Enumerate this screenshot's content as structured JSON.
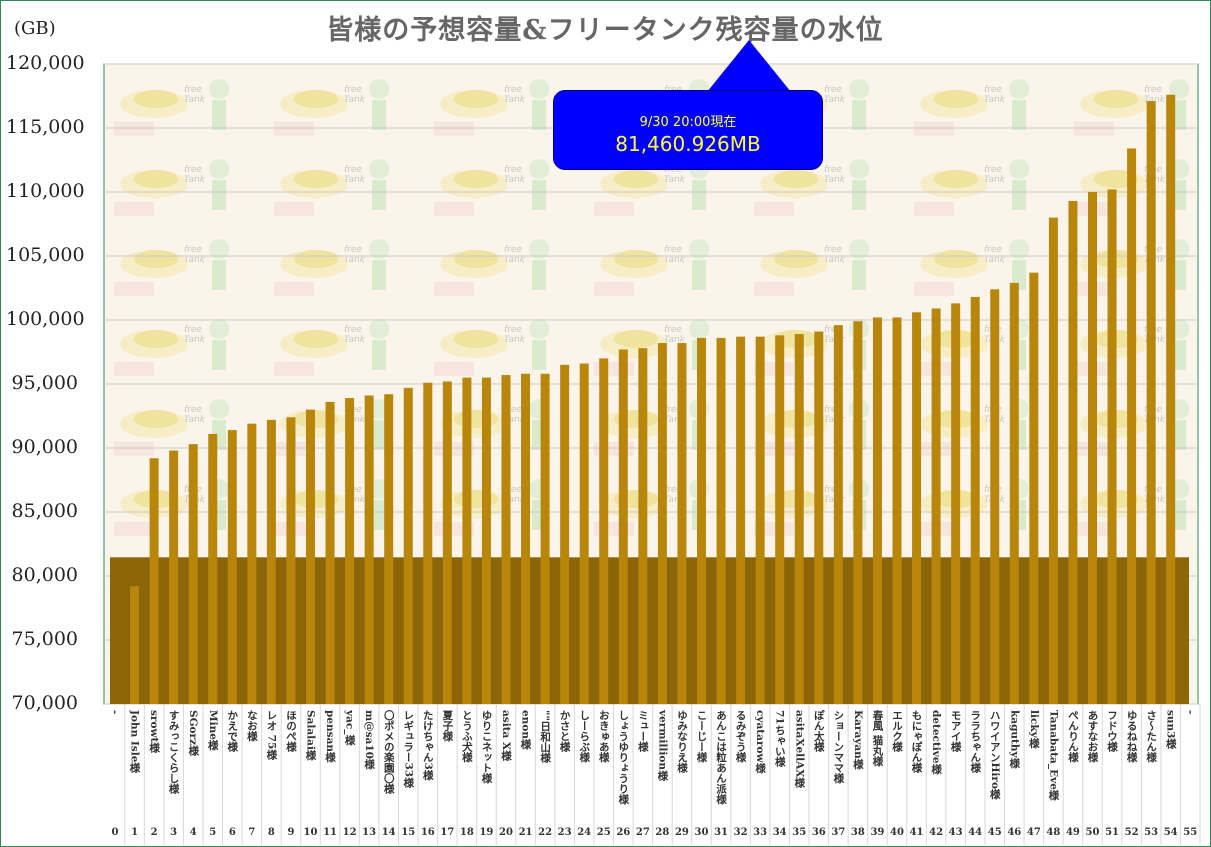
{
  "title": "皆様の予想容量&フリータンク残容量の水位",
  "unit_label": "(GB)",
  "callout": {
    "line1": "9/30 20:00現在",
    "line2": "81,460.926MB"
  },
  "colors": {
    "bar": "#b8860b",
    "tank": "#8b6508",
    "grid": "#c8c8c8",
    "title": "#666666",
    "callout_bg": "#0000ff",
    "callout_text": "#ffff33"
  },
  "chart_data": {
    "type": "bar",
    "title": "皆様の予想容量&フリータンク残容量の水位",
    "ylabel": "(GB)",
    "ylim": [
      70000,
      120000
    ],
    "yticks": [
      70000,
      75000,
      80000,
      85000,
      90000,
      95000,
      100000,
      105000,
      110000,
      115000,
      120000
    ],
    "ytick_labels": [
      "70,000",
      "75,000",
      "80,000",
      "85,000",
      "90,000",
      "95,000",
      "100,000",
      "105,000",
      "110,000",
      "115,000",
      "120,000"
    ],
    "tank_level": 81460.926,
    "categories": [
      "-",
      "John Isle様",
      "srowt様",
      "すみっこくらし様",
      "SGorz様",
      "Mine様",
      "かえで様",
      "なお様",
      "レオ 75様",
      "ほのぺ様",
      "Salalai様",
      "pensan様",
      "yac_様",
      "m@sa10様",
      "〇ポメの楽園〇様",
      "レギュラー33様",
      "たけちゃん3様",
      "夏子様",
      "とうふ犬様",
      "ゆりこネット様",
      "asita X様",
      "enon様",
      "\"\"日和山様",
      "かさと様",
      "しーらぶ様",
      "おきゅあ様",
      "しょうゆりょうり様",
      "ミュー様",
      "vermillion様",
      "ゆみなりえ様",
      "こーじー様",
      "あんこは粒あん派様",
      "るみぞう様",
      "cyatarow様",
      "71ちゃい様",
      "asitaXellAX様",
      "ぽん太様",
      "ショーンママ様",
      "Karayan様",
      "春風 猫丸様",
      "エルク様",
      "もにゃぽん様",
      "detective様",
      "モアイ様",
      "ララちゃん様",
      "ハワイアンHiro様",
      "kaguthy様",
      "licky様",
      "Tanabata_Eve様",
      "ぺんりん様",
      "あすなお様",
      "フドウ様",
      "ゆるねね様",
      "さ〜たん様",
      "sun3様",
      "-"
    ],
    "values": [
      null,
      79200,
      89200,
      89800,
      90300,
      91100,
      91400,
      91900,
      92200,
      92400,
      93000,
      93600,
      93900,
      94100,
      94200,
      94700,
      95100,
      95200,
      95500,
      95500,
      95700,
      95800,
      95800,
      96500,
      96600,
      97000,
      97700,
      97800,
      98200,
      98200,
      98600,
      98600,
      98700,
      98700,
      98800,
      98900,
      99100,
      99600,
      99900,
      100200,
      100200,
      100600,
      100900,
      101300,
      101800,
      102400,
      102900,
      103700,
      108000,
      109300,
      110000,
      110200,
      113400,
      117100,
      117600,
      null
    ]
  }
}
